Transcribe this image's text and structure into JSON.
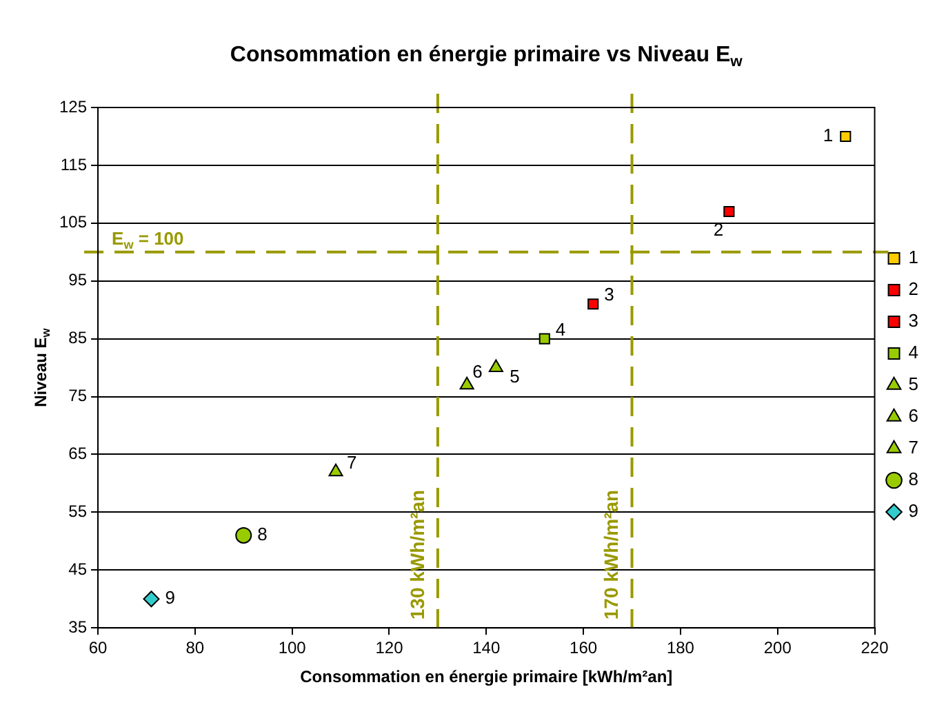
{
  "chart_data": {
    "type": "scatter",
    "title": "Consommation en énergie primaire vs Niveau E$_{w}$",
    "xlabel": "Consommation en énergie primaire [kWh/m²an]",
    "ylabel": "Niveau E$_{w}$",
    "xlim": [
      60,
      220
    ],
    "xticks": [
      60,
      80,
      100,
      120,
      140,
      160,
      180,
      200,
      220
    ],
    "ylim": [
      35,
      125
    ],
    "yticks": [
      35,
      45,
      55,
      65,
      75,
      85,
      95,
      105,
      115,
      125
    ],
    "grid": "y",
    "legend": "right",
    "series": [
      {
        "name": "1",
        "color": "#ffcc00",
        "marker": "square",
        "x": [
          214
        ],
        "values": [
          120
        ]
      },
      {
        "name": "2",
        "color": "#ff0000",
        "marker": "square",
        "x": [
          190
        ],
        "values": [
          107
        ]
      },
      {
        "name": "3",
        "color": "#ff0000",
        "marker": "square",
        "x": [
          162
        ],
        "values": [
          91
        ]
      },
      {
        "name": "4",
        "color": "#99cc00",
        "marker": "square",
        "x": [
          152
        ],
        "values": [
          85
        ]
      },
      {
        "name": "5",
        "color": "#99cc00",
        "marker": "triangle",
        "x": [
          142
        ],
        "values": [
          80
        ]
      },
      {
        "name": "6",
        "color": "#99cc00",
        "marker": "triangle",
        "x": [
          136
        ],
        "values": [
          77
        ]
      },
      {
        "name": "7",
        "color": "#99cc00",
        "marker": "triangle",
        "x": [
          109
        ],
        "values": [
          62
        ]
      },
      {
        "name": "8",
        "color": "#99cc00",
        "marker": "circle",
        "x": [
          90
        ],
        "values": [
          51
        ]
      },
      {
        "name": "9",
        "color": "#33cccc",
        "marker": "diamond",
        "x": [
          71
        ],
        "values": [
          40
        ]
      }
    ],
    "ref_lines": [
      {
        "axis": "y",
        "value": 100,
        "label": "E$_{w}$ = 100",
        "color": "#999900",
        "line_style": "dashed"
      },
      {
        "axis": "x",
        "value": 130,
        "label": "130 kWh/m²an",
        "color": "#999900",
        "line_style": "dashed"
      },
      {
        "axis": "x",
        "value": 170,
        "label": "170 kWh/m²an",
        "color": "#999900",
        "line_style": "dashed"
      }
    ]
  }
}
